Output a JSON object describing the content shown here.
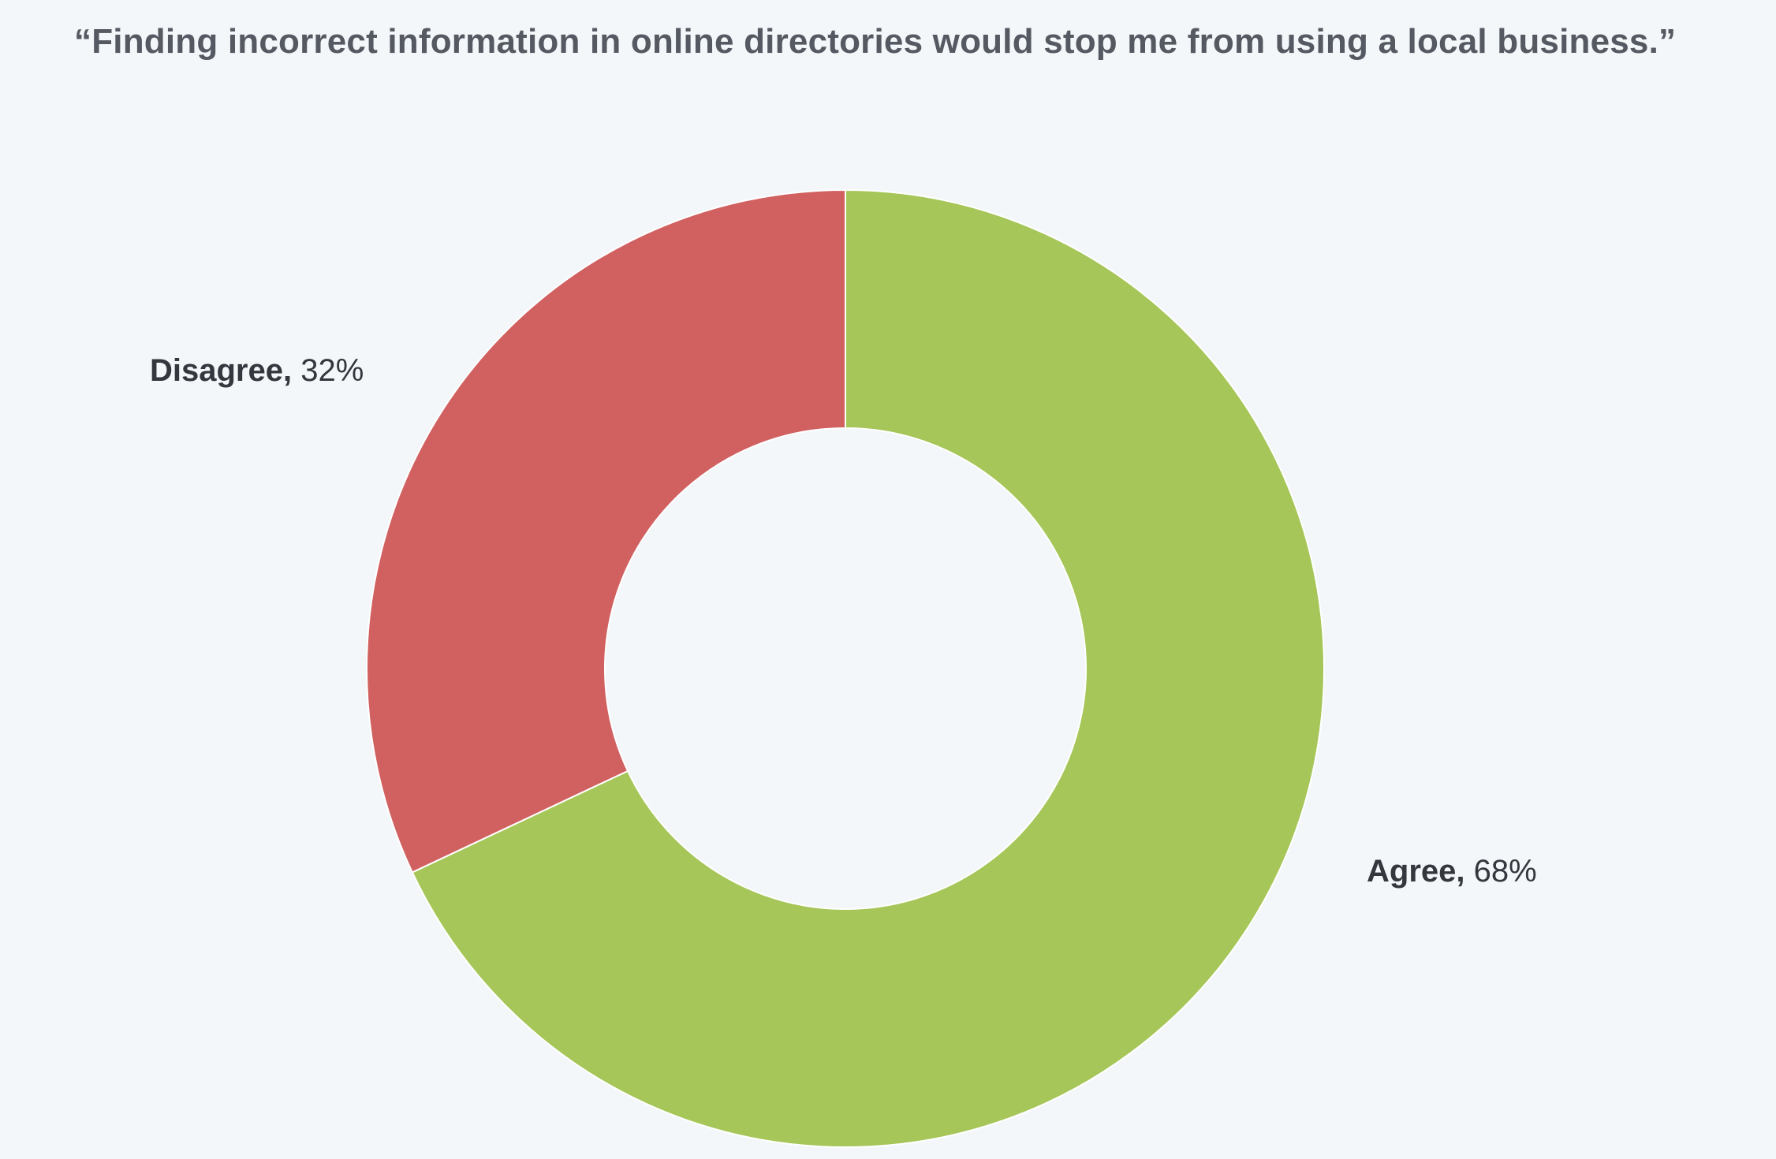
{
  "chart_data": {
    "type": "pie",
    "variant": "donut",
    "title": "“Finding incorrect information in online directories would stop me from using a local business.”",
    "slices": [
      {
        "label": "Agree",
        "value": 68,
        "value_text": "68%",
        "color": "#a6c659"
      },
      {
        "label": "Disagree",
        "value": 32,
        "value_text": "32%",
        "color": "#d16160"
      }
    ],
    "start_angle_deg": 0,
    "direction": "clockwise",
    "legend": "none",
    "data_labels": "outside"
  }
}
